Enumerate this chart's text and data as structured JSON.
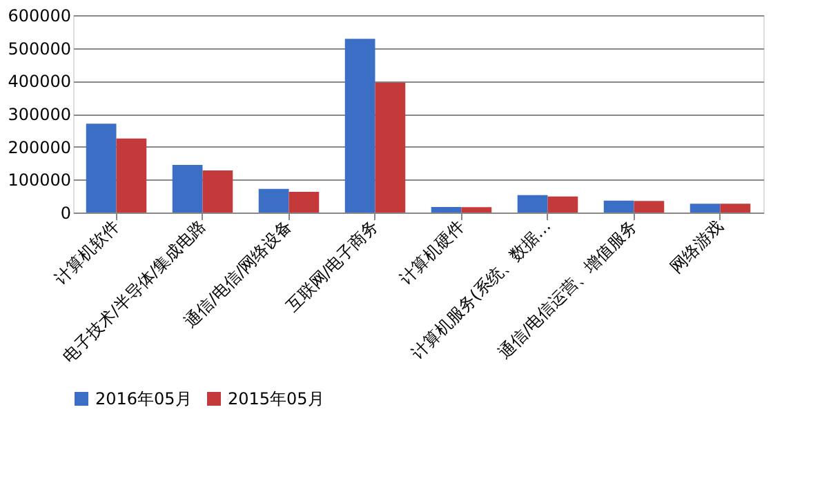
{
  "chart_data": {
    "type": "bar",
    "categories": [
      "计算机软件",
      "电子技术/半导体/集成电路",
      "通信/电信/网络设备",
      "互联网/电子商务",
      "计算机硬件",
      "计算机服务(系统、数据…",
      "通信/电信运营、增值服务",
      "网络游戏"
    ],
    "series": [
      {
        "name": "2016年05月",
        "color": "#3b6fc6",
        "values": [
          270000,
          145000,
          72000,
          528000,
          17000,
          53000,
          36000,
          27000
        ]
      },
      {
        "name": "2015年05月",
        "color": "#c43a3a",
        "values": [
          225000,
          128000,
          63000,
          395000,
          16000,
          49000,
          35000,
          27000
        ]
      }
    ],
    "ylim": [
      0,
      600000
    ],
    "yticks": [
      0,
      100000,
      200000,
      300000,
      400000,
      500000,
      600000
    ],
    "grid": "y",
    "legend": "bottom"
  }
}
